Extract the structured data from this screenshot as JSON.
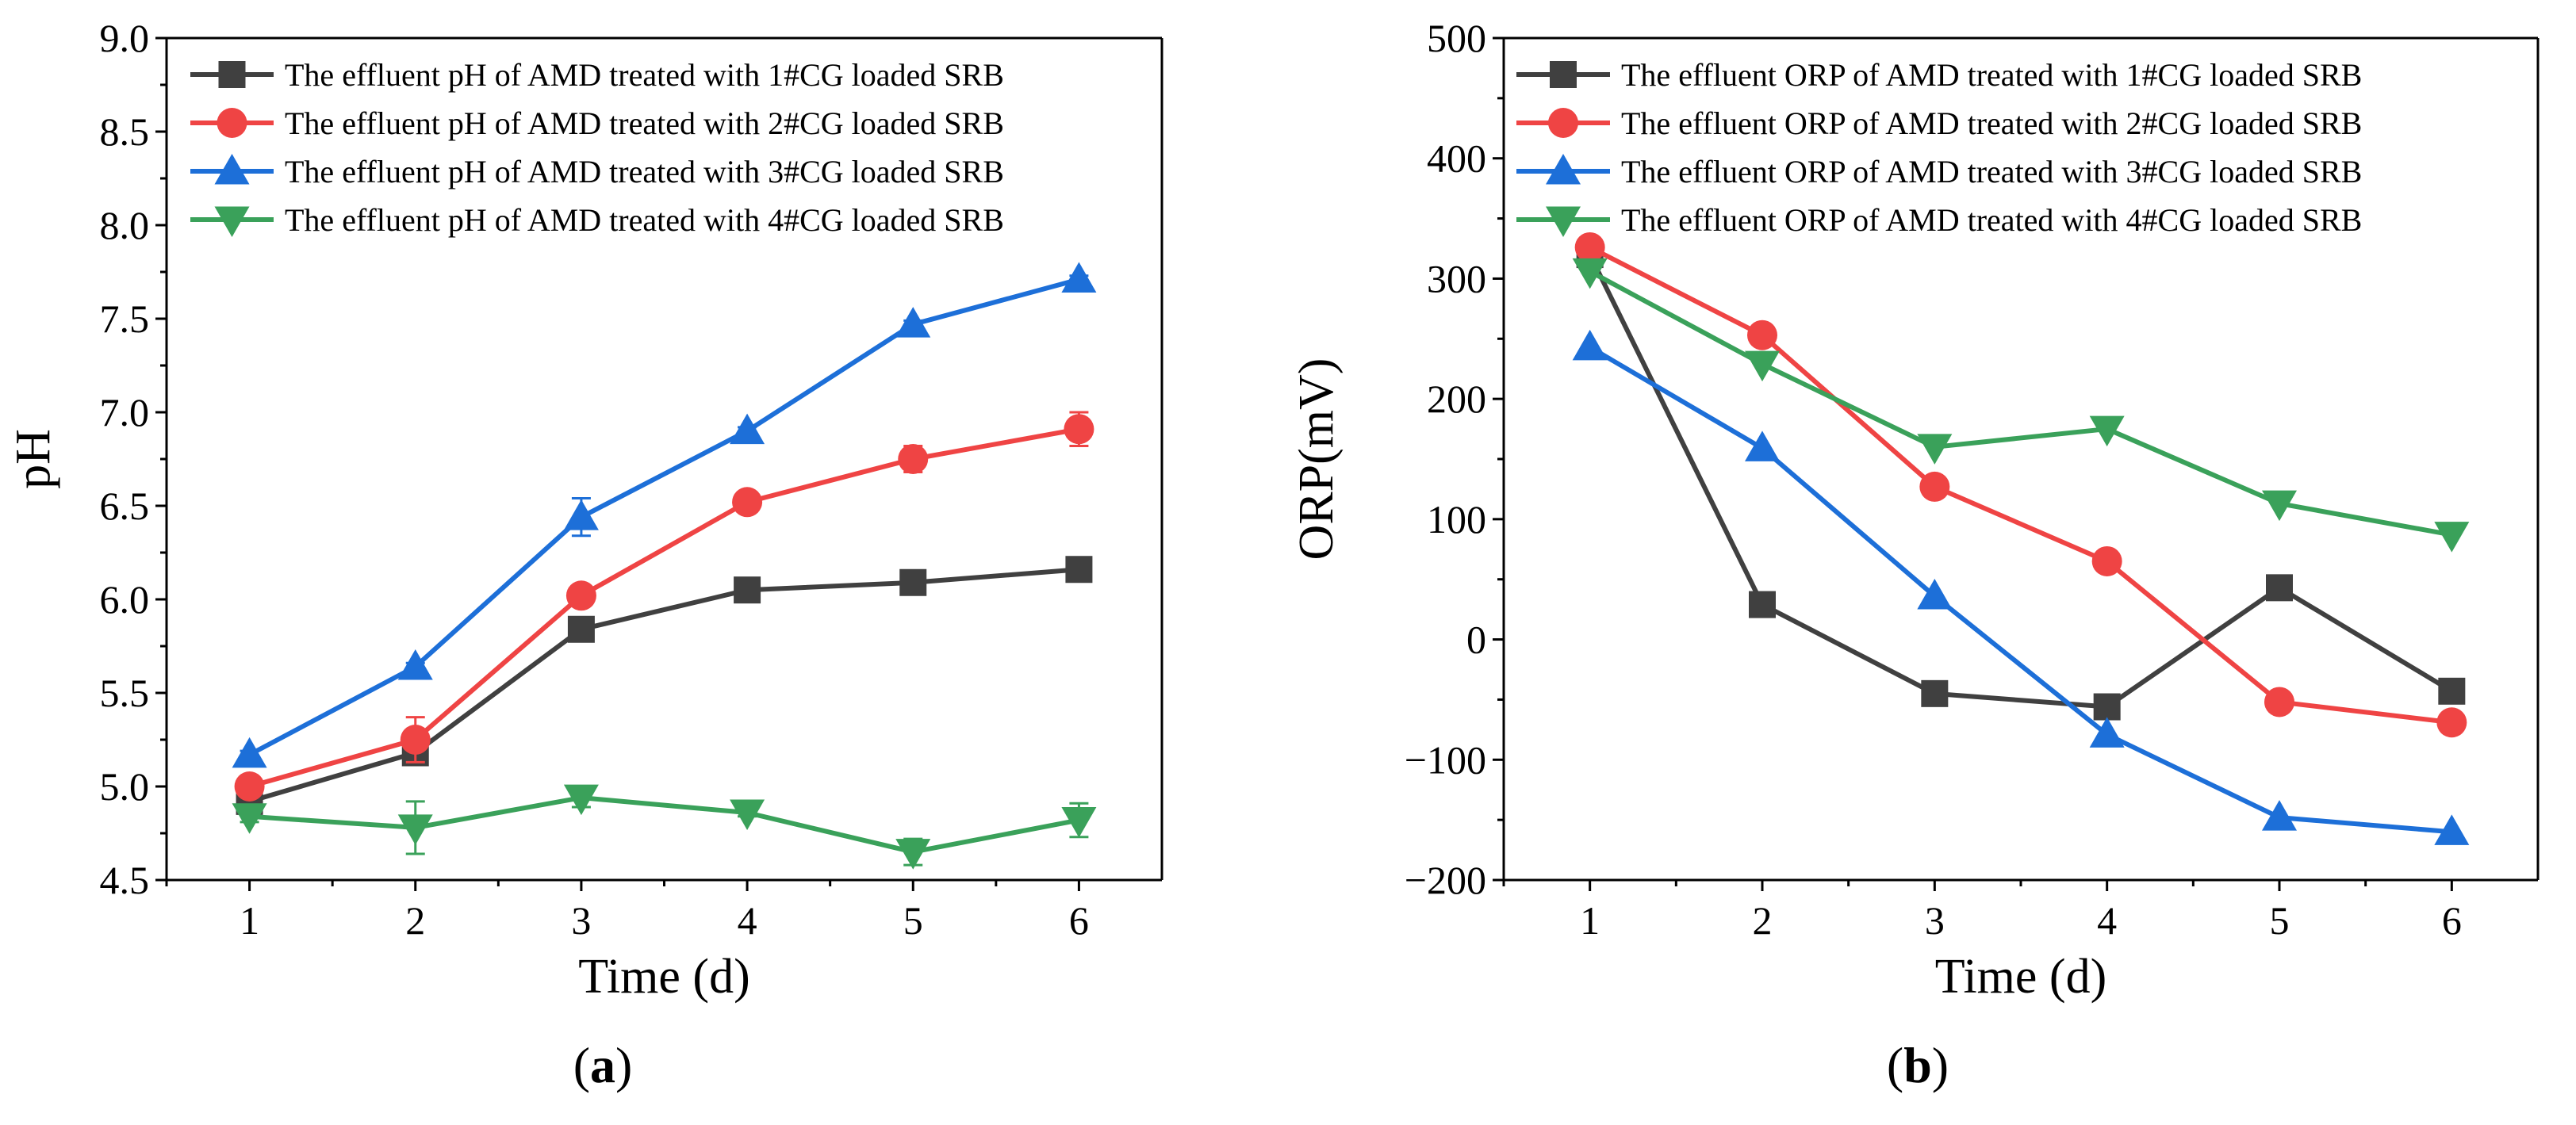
{
  "chart_data": [
    {
      "type": "line",
      "panel_label": "a",
      "xlabel": "Time (d)",
      "ylabel": "pH",
      "xlim": [
        0.5,
        6.5
      ],
      "ylim": [
        4.5,
        9.0
      ],
      "x": [
        1,
        2,
        3,
        4,
        5,
        6
      ],
      "x_ticks": [
        "1",
        "2",
        "3",
        "4",
        "5",
        "6"
      ],
      "y_ticks": [
        "4.5",
        "5.0",
        "5.5",
        "6.0",
        "6.5",
        "7.0",
        "7.5",
        "8.0",
        "8.5",
        "9.0"
      ],
      "legend_position": "top-left",
      "series": [
        {
          "name": "The effluent pH of AMD treated with 1#CG loaded SRB",
          "color": "#404040",
          "marker": "square",
          "values": [
            4.92,
            5.18,
            5.84,
            6.05,
            6.09,
            6.16
          ],
          "errors": [
            0.03,
            0.06,
            0.03,
            0.02,
            0.02,
            0.02
          ]
        },
        {
          "name": "The effluent pH of AMD treated with 2#CG loaded SRB",
          "color": "#ef4444",
          "marker": "circle",
          "values": [
            5.0,
            5.25,
            6.02,
            6.52,
            6.75,
            6.91
          ],
          "errors": [
            0.03,
            0.12,
            0.03,
            0.03,
            0.07,
            0.09
          ]
        },
        {
          "name": "The effluent pH of AMD treated with 3#CG loaded SRB",
          "color": "#1d6fd8",
          "marker": "triangle-up",
          "values": [
            5.17,
            5.64,
            6.44,
            6.9,
            7.47,
            7.71
          ],
          "errors": [
            0.02,
            0.02,
            0.1,
            0.02,
            0.02,
            0.02
          ]
        },
        {
          "name": "The effluent pH of AMD treated with 4#CG loaded SRB",
          "color": "#3aa15a",
          "marker": "triangle-down",
          "values": [
            4.84,
            4.78,
            4.94,
            4.86,
            4.65,
            4.82
          ],
          "errors": [
            0.03,
            0.14,
            0.05,
            0.02,
            0.07,
            0.09
          ]
        }
      ]
    },
    {
      "type": "line",
      "panel_label": "b",
      "xlabel": "Time (d)",
      "ylabel": "ORP(mV)",
      "xlim": [
        0.5,
        6.5
      ],
      "ylim": [
        -200,
        500
      ],
      "x": [
        1,
        2,
        3,
        4,
        5,
        6
      ],
      "x_ticks": [
        "1",
        "2",
        "3",
        "4",
        "5",
        "6"
      ],
      "y_ticks": [
        "−200",
        "−100",
        "0",
        "100",
        "200",
        "300",
        "400",
        "500"
      ],
      "legend_position": "top-left",
      "series": [
        {
          "name": "The effluent ORP of AMD treated with 1#CG loaded SRB",
          "color": "#404040",
          "marker": "square",
          "values": [
            320,
            29,
            -45,
            -56,
            43,
            -43
          ]
        },
        {
          "name": "The effluent ORP of AMD treated with 2#CG loaded SRB",
          "color": "#ef4444",
          "marker": "circle",
          "values": [
            326,
            253,
            127,
            65,
            -52,
            -69
          ]
        },
        {
          "name": "The effluent ORP of AMD treated with 3#CG loaded SRB",
          "color": "#1d6fd8",
          "marker": "triangle-up",
          "values": [
            243,
            159,
            36,
            -79,
            -148,
            -160
          ]
        },
        {
          "name": "The effluent ORP of AMD treated with 4#CG loaded SRB",
          "color": "#3aa15a",
          "marker": "triangle-down",
          "values": [
            306,
            229,
            160,
            175,
            113,
            87
          ]
        }
      ]
    }
  ]
}
